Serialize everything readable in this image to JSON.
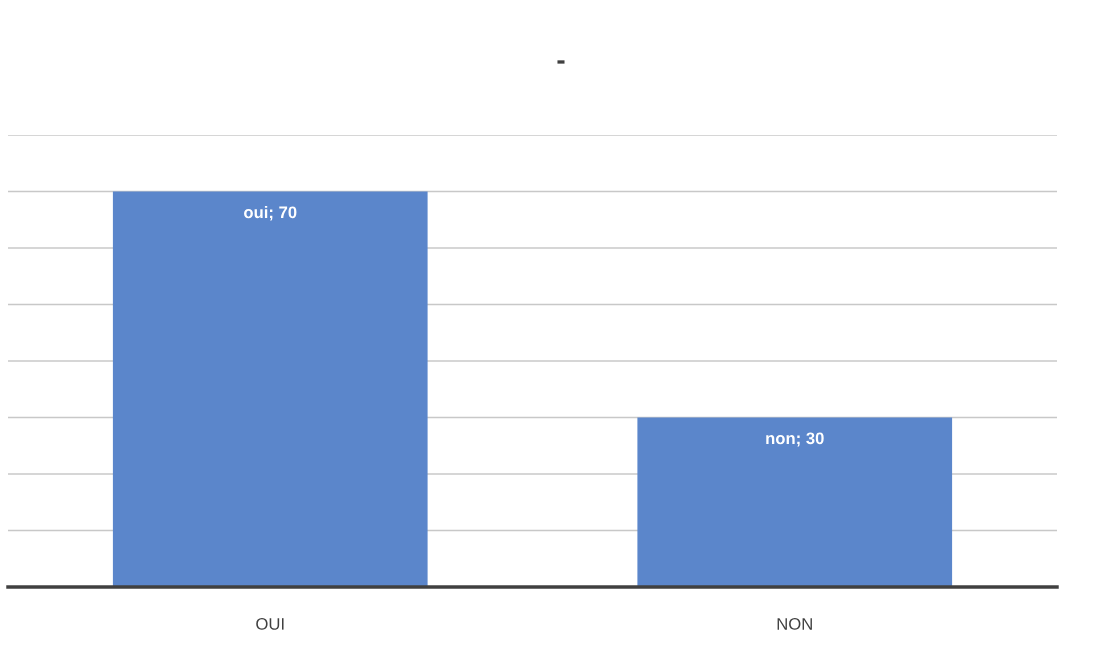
{
  "chart_data": {
    "type": "bar",
    "title": "-",
    "categories": [
      "OUI",
      "NON"
    ],
    "values": [
      70,
      30
    ],
    "value_labels": [
      "oui; 70",
      "non; 30"
    ],
    "color": "#5b86cb",
    "ylim": [
      0,
      80
    ],
    "yticks": [
      {
        "value": 0,
        "label": null
      },
      {
        "value": 10,
        "label": null
      },
      {
        "value": 20,
        "label": null
      },
      {
        "value": 30,
        "label": null
      },
      {
        "value": 40,
        "label": null
      },
      {
        "value": 50,
        "label": null
      },
      {
        "value": 60,
        "label": null
      },
      {
        "value": 70,
        "label": null
      },
      {
        "value": 80,
        "label": null
      }
    ],
    "grid": "y",
    "legend": false
  }
}
